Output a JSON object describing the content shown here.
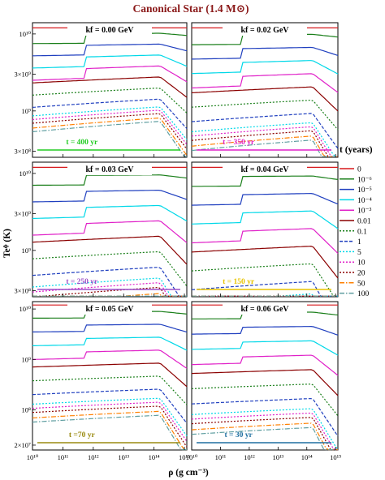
{
  "chart_data": {
    "type": "line",
    "title": "Canonical Star (1.4 M⊙)",
    "xlabel": "ρ (g cm⁻³)",
    "ylabel": "Teᶲ (K)",
    "xscale": "log",
    "yscale": "log",
    "xlim": [
      10000000000.0,
      1200000000000000.0
    ],
    "x_ticks": [
      "10¹⁰",
      "10¹¹",
      "10¹²",
      "10¹³",
      "10¹⁴",
      "10¹⁵"
    ],
    "legend": {
      "title": "t (years)",
      "placement": "right",
      "entries": [
        {
          "label": "0",
          "color": "#d7191c",
          "style": "solid"
        },
        {
          "label": "10⁻⁶",
          "color": "#1a7f1a",
          "style": "solid"
        },
        {
          "label": "10⁻⁵",
          "color": "#1f3fbf",
          "style": "solid"
        },
        {
          "label": "10⁻⁴",
          "color": "#00d8e8",
          "style": "solid"
        },
        {
          "label": "10⁻³",
          "color": "#e020c8",
          "style": "solid"
        },
        {
          "label": "0.01",
          "color": "#8b0000",
          "style": "solid"
        },
        {
          "label": "0.1",
          "color": "#1a7f1a",
          "style": "dotted"
        },
        {
          "label": "1",
          "color": "#1f3fbf",
          "style": "dashed"
        },
        {
          "label": "5",
          "color": "#00d8e8",
          "style": "dotted"
        },
        {
          "label": "10",
          "color": "#e020c8",
          "style": "dotted"
        },
        {
          "label": "20",
          "color": "#8b0000",
          "style": "dotted"
        },
        {
          "label": "50",
          "color": "#ff8000",
          "style": "dashdot"
        },
        {
          "label": "100",
          "color": "#5f9ea0",
          "style": "dashdot"
        }
      ]
    },
    "panels": [
      {
        "k_label": "kf = 0.00 GeV",
        "time_label": "t = 400 yr",
        "time_color": "#22cc22",
        "ylim": [
          250000000.0,
          14000000000.0
        ],
        "y_ticks": [
          "10¹⁰",
          "3×10⁹",
          "10⁹",
          "3×10⁸"
        ]
      },
      {
        "k_label": "kf = 0.02 GeV",
        "time_label": "t = 350 yr",
        "time_color": "#e020c8",
        "ylim": [
          250000000.0,
          14000000000.0
        ],
        "y_ticks": []
      },
      {
        "k_label": "kf = 0.03 GeV",
        "time_label": "t = 250 yr",
        "time_color": "#9b4fc8",
        "ylim": [
          250000000.0,
          14000000000.0
        ],
        "y_ticks": [
          "10¹⁰",
          "3×10⁹",
          "10⁹",
          "3×10⁸"
        ]
      },
      {
        "k_label": "kf = 0.04 GeV",
        "time_label": "t = 150 yr",
        "time_color": "#e8c400",
        "ylim": [
          250000000.0,
          14000000000.0
        ],
        "y_ticks": []
      },
      {
        "k_label": "kf = 0.05 GeV",
        "time_label": "t =70 yr",
        "time_color": "#9a8a10",
        "ylim": [
          16000000.0,
          14000000000.0
        ],
        "y_ticks": [
          "10¹⁰",
          "10⁹",
          "10⁸",
          "2×10⁷"
        ]
      },
      {
        "k_label": "kf = 0.06 GeV",
        "time_label": "t = 30 yr",
        "time_color": "#1f6fa0",
        "ylim": [
          16000000.0,
          14000000000.0
        ],
        "y_ticks": []
      }
    ],
    "series_initial_value": 12000000000.0,
    "annotation_axis_label_note": "k_f^DM shown as superscript DM"
  }
}
